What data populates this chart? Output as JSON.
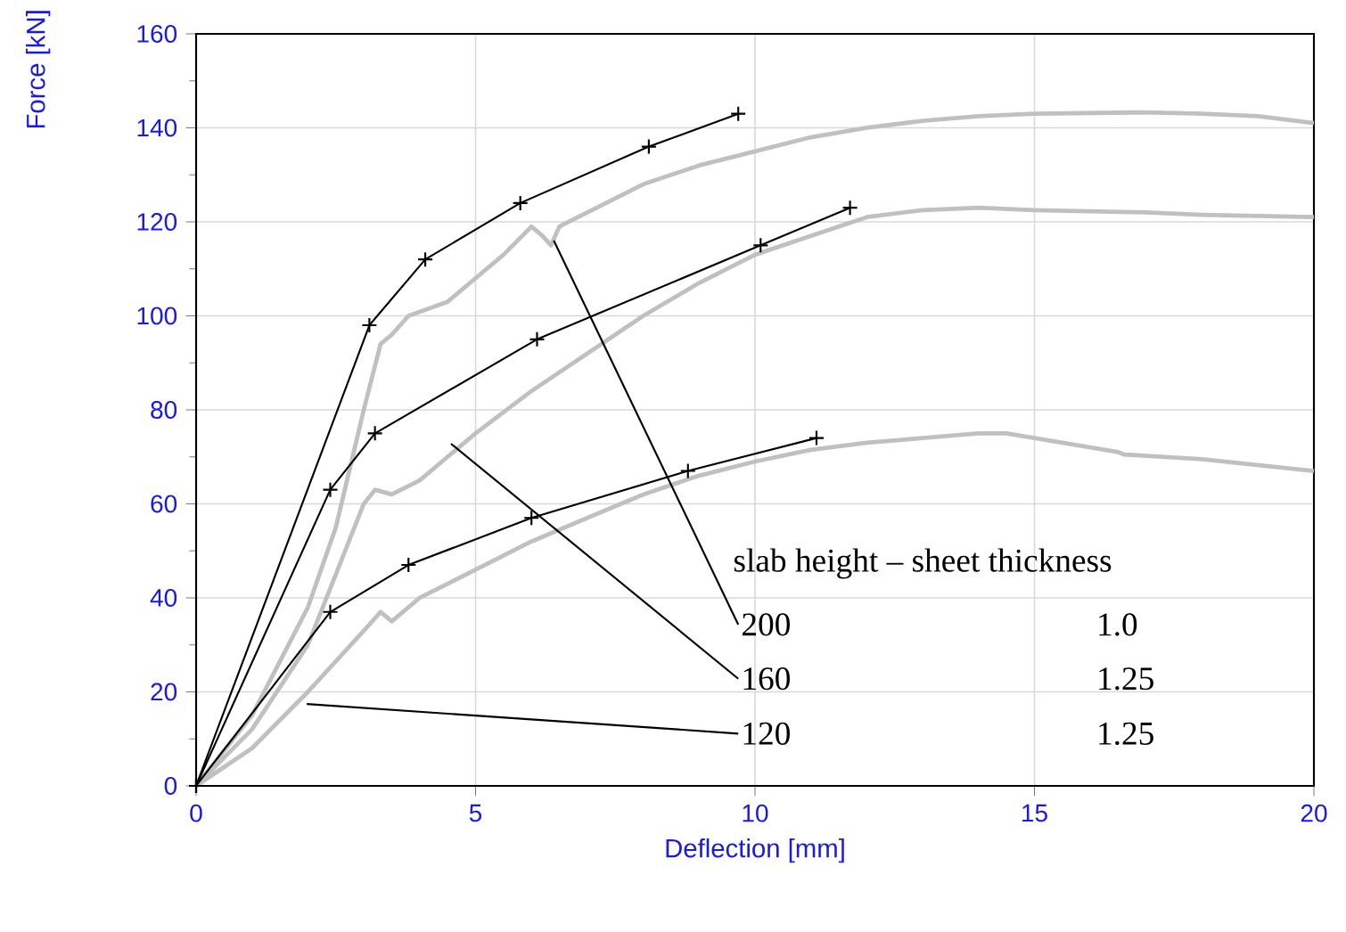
{
  "chart_data": {
    "type": "line",
    "xlabel": "Deflection [mm]",
    "ylabel": "Force [kN]",
    "xlim": [
      0,
      20
    ],
    "ylim": [
      0,
      160
    ],
    "xticks": [
      0,
      5,
      10,
      15,
      20
    ],
    "yticks": [
      0,
      20,
      40,
      60,
      80,
      100,
      120,
      140,
      160
    ],
    "grid": true,
    "series": [
      {
        "color": "#c0c0c0",
        "marker": "none",
        "x": [
          0,
          1,
          2,
          2.5,
          3,
          3.3,
          3.5,
          3.8,
          4.5,
          5,
          5.5,
          6,
          6.2,
          6.35,
          6.5,
          7,
          8,
          9,
          10,
          11,
          12,
          13,
          14,
          15,
          17,
          18,
          19,
          20
        ],
        "values": [
          0,
          15,
          38,
          55,
          80,
          94,
          96,
          100,
          103,
          108,
          113,
          119,
          117,
          115,
          119,
          122,
          128,
          132,
          135,
          138,
          140,
          141.5,
          142.5,
          143,
          143.3,
          143,
          142.5,
          141
        ]
      },
      {
        "color": "#c0c0c0",
        "marker": "none",
        "x": [
          0,
          1,
          2,
          2.5,
          3,
          3.2,
          3.5,
          4,
          4.5,
          5,
          6,
          7,
          8,
          9,
          10,
          11,
          12,
          13,
          14,
          15,
          17,
          18,
          20
        ],
        "values": [
          0,
          12,
          30,
          45,
          60,
          63,
          62,
          65,
          70,
          75,
          84,
          92,
          100,
          107,
          113,
          117,
          121,
          122.5,
          123,
          122.5,
          122,
          121.5,
          121
        ]
      },
      {
        "color": "#c0c0c0",
        "marker": "none",
        "x": [
          0,
          1,
          2,
          3,
          3.3,
          3.5,
          4,
          5,
          6,
          7,
          8,
          9,
          10,
          11,
          12,
          13,
          14,
          14.5,
          15,
          16.5,
          16.6,
          18,
          20
        ],
        "values": [
          0,
          8,
          20,
          33,
          37,
          35,
          40,
          46,
          52,
          57,
          62,
          66,
          69,
          71.5,
          73,
          74,
          75,
          75,
          74,
          71,
          70.5,
          69.5,
          67
        ]
      },
      {
        "color": "#000000",
        "marker": "cross",
        "x": [
          0,
          3.1,
          4.1,
          5.8,
          8.1,
          9.7
        ],
        "values": [
          0,
          98,
          112,
          124,
          136,
          143
        ]
      },
      {
        "color": "#000000",
        "marker": "cross",
        "x": [
          0,
          2.4,
          3.2,
          6.1,
          10.1,
          11.7
        ],
        "values": [
          0,
          63,
          75,
          95,
          115,
          123
        ]
      },
      {
        "color": "#000000",
        "marker": "cross",
        "x": [
          0,
          2.4,
          3.8,
          6.0,
          8.8,
          11.1
        ],
        "values": [
          0,
          37,
          47,
          57,
          67,
          74
        ]
      }
    ],
    "annotations": [
      "slab height – sheet thickness",
      {
        "text": "200",
        "x": 6.4,
        "y": 116
      },
      {
        "text": "160",
        "x": 4.56,
        "y": 72.8
      },
      {
        "text": "120",
        "x": 1.98,
        "y": 17.4
      },
      "1.0",
      "1.25",
      "1.25"
    ]
  }
}
